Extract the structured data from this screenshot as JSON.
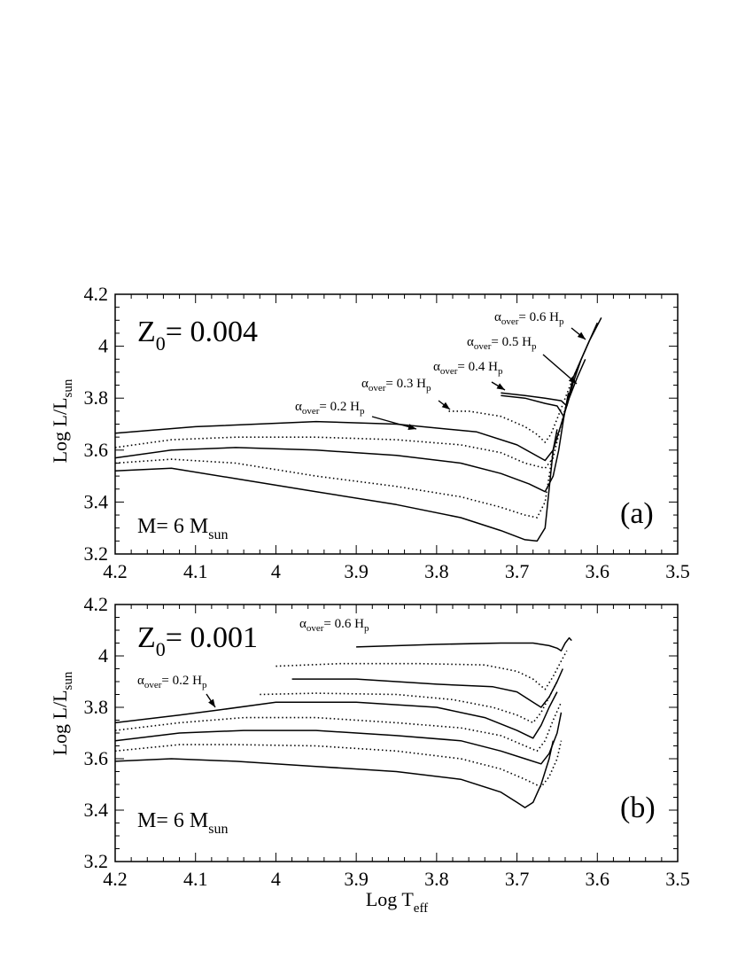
{
  "chart_data": [
    {
      "type": "line",
      "panel": "a",
      "panel_label": "(a)",
      "metallicity_label": "Z",
      "metallicity_sub": "0",
      "metallicity_value": "= 0.004",
      "mass_label": "M= 6 M",
      "mass_sub": "sun",
      "xlabel": "",
      "ylabel": "Log L/L",
      "ylabel_sub": "sun",
      "xlim": [
        4.2,
        3.5
      ],
      "ylim": [
        3.2,
        4.2
      ],
      "x_ticks": [
        "4.2",
        "4.1",
        "4",
        "3.9",
        "3.8",
        "3.7",
        "3.6",
        "3.5"
      ],
      "y_ticks": [
        "3.2",
        "3.4",
        "3.6",
        "3.8",
        "4"
      ],
      "y_ticks_extra": [
        "4.2"
      ],
      "annotations": [
        {
          "text": "α",
          "sub": "over",
          "rest": "= 0.2 H",
          "rest_sub": "p",
          "alpha": "0.2"
        },
        {
          "text": "α",
          "sub": "over",
          "rest": "= 0.3 H",
          "rest_sub": "p",
          "alpha": "0.3"
        },
        {
          "text": "α",
          "sub": "over",
          "rest": "= 0.4 H",
          "rest_sub": "p",
          "alpha": "0.4"
        },
        {
          "text": "α",
          "sub": "over",
          "rest": "= 0.5 H",
          "rest_sub": "p",
          "alpha": "0.5"
        },
        {
          "text": "α",
          "sub": "over",
          "rest": "= 0.6 H",
          "rest_sub": "p",
          "alpha": "0.6"
        }
      ],
      "series": [
        {
          "name": "alpha_over=0.2",
          "style": "solid",
          "x": [
            4.2,
            4.13,
            4.05,
            3.95,
            3.85,
            3.77,
            3.72,
            3.69,
            3.675,
            3.665,
            3.66,
            3.655,
            3.65
          ],
          "y": [
            3.52,
            3.53,
            3.49,
            3.44,
            3.39,
            3.34,
            3.29,
            3.255,
            3.25,
            3.3,
            3.45,
            3.6,
            3.68
          ]
        },
        {
          "name": "alpha_over=0.25",
          "style": "dotted",
          "x": [
            4.2,
            4.13,
            4.05,
            3.95,
            3.85,
            3.77,
            3.72,
            3.69,
            3.675,
            3.665,
            3.66,
            3.655,
            3.65
          ],
          "y": [
            3.55,
            3.565,
            3.55,
            3.5,
            3.46,
            3.42,
            3.38,
            3.35,
            3.34,
            3.4,
            3.5,
            3.6,
            3.67
          ]
        },
        {
          "name": "alpha_over=0.3",
          "style": "solid",
          "x": [
            4.2,
            4.13,
            4.05,
            3.95,
            3.85,
            3.77,
            3.72,
            3.685,
            3.665,
            3.655,
            3.648,
            3.642,
            3.636
          ],
          "y": [
            3.57,
            3.6,
            3.61,
            3.6,
            3.58,
            3.55,
            3.51,
            3.47,
            3.44,
            3.5,
            3.6,
            3.72,
            3.82
          ]
        },
        {
          "name": "alpha_over=0.35",
          "style": "dotted",
          "x": [
            4.2,
            4.13,
            4.05,
            3.95,
            3.85,
            3.77,
            3.72,
            3.69,
            3.665,
            3.655,
            3.648,
            3.64,
            3.63
          ],
          "y": [
            3.61,
            3.64,
            3.65,
            3.65,
            3.64,
            3.62,
            3.59,
            3.55,
            3.53,
            3.57,
            3.66,
            3.76,
            3.86
          ]
        },
        {
          "name": "alpha_over=0.4",
          "style": "solid",
          "x": [
            4.2,
            4.1,
            3.95,
            3.85,
            3.75,
            3.7,
            3.665,
            3.655,
            3.645,
            3.635,
            3.625,
            3.615
          ],
          "y": [
            3.665,
            3.69,
            3.71,
            3.7,
            3.67,
            3.62,
            3.56,
            3.6,
            3.7,
            3.8,
            3.88,
            3.95
          ]
        },
        {
          "name": "alpha_over=0.45",
          "style": "dotted",
          "x": [
            3.785,
            3.76,
            3.72,
            3.69,
            3.675,
            3.665,
            3.658,
            3.65,
            3.64,
            3.63,
            3.62
          ],
          "y": [
            3.75,
            3.75,
            3.73,
            3.69,
            3.66,
            3.63,
            3.66,
            3.72,
            3.8,
            3.88,
            3.95
          ]
        },
        {
          "name": "alpha_over=0.5",
          "style": "solid",
          "x": [
            3.72,
            3.69,
            3.665,
            3.65,
            3.642,
            3.636,
            3.63,
            3.62,
            3.61,
            3.6
          ],
          "y": [
            3.81,
            3.8,
            3.78,
            3.77,
            3.73,
            3.8,
            3.88,
            3.95,
            4.02,
            4.09
          ]
        },
        {
          "name": "alpha_over=0.6",
          "style": "solid",
          "x": [
            3.72,
            3.69,
            3.665,
            3.645,
            3.638,
            3.63,
            3.62,
            3.61,
            3.6,
            3.595
          ],
          "y": [
            3.82,
            3.81,
            3.8,
            3.79,
            3.77,
            3.86,
            3.95,
            4.02,
            4.08,
            4.11
          ]
        }
      ]
    },
    {
      "type": "line",
      "panel": "b",
      "panel_label": "(b)",
      "metallicity_label": "Z",
      "metallicity_sub": "0",
      "metallicity_value": "= 0.001",
      "mass_label": "M= 6 M",
      "mass_sub": "sun",
      "xlabel": "Log T",
      "xlabel_sub": "eff",
      "ylabel": "Log L/L",
      "ylabel_sub": "sun",
      "xlim": [
        4.2,
        3.5
      ],
      "ylim": [
        3.2,
        4.2
      ],
      "x_ticks": [
        "4.2",
        "4.1",
        "4",
        "3.9",
        "3.8",
        "3.7",
        "3.6",
        "3.5"
      ],
      "y_ticks": [
        "3.2",
        "3.4",
        "3.6",
        "3.8",
        "4"
      ],
      "y_ticks_extra": [
        "4.2"
      ],
      "annotations": [
        {
          "text": "α",
          "sub": "over",
          "rest": "= 0.6 H",
          "rest_sub": "p",
          "alpha": "0.6"
        },
        {
          "text": "α",
          "sub": "over",
          "rest": "= 0.2 H",
          "rest_sub": "p",
          "alpha": "0.2"
        }
      ],
      "series": [
        {
          "name": "alpha_over=0.2",
          "style": "solid",
          "x": [
            4.2,
            4.13,
            4.05,
            3.95,
            3.85,
            3.77,
            3.72,
            3.7,
            3.69,
            3.68,
            3.67,
            3.66,
            3.655
          ],
          "y": [
            3.59,
            3.6,
            3.59,
            3.57,
            3.55,
            3.52,
            3.47,
            3.43,
            3.41,
            3.43,
            3.5,
            3.6,
            3.67
          ]
        },
        {
          "name": "alpha_over=0.25",
          "style": "dotted",
          "x": [
            4.2,
            4.12,
            4.05,
            3.95,
            3.85,
            3.77,
            3.72,
            3.69,
            3.67,
            3.66,
            3.65,
            3.645
          ],
          "y": [
            3.63,
            3.655,
            3.655,
            3.65,
            3.63,
            3.6,
            3.56,
            3.52,
            3.49,
            3.53,
            3.6,
            3.67
          ]
        },
        {
          "name": "alpha_over=0.3",
          "style": "solid",
          "x": [
            4.2,
            4.12,
            4.04,
            3.95,
            3.85,
            3.77,
            3.72,
            3.69,
            3.67,
            3.66,
            3.65,
            3.645
          ],
          "y": [
            3.67,
            3.7,
            3.71,
            3.71,
            3.69,
            3.67,
            3.63,
            3.6,
            3.58,
            3.62,
            3.7,
            3.78
          ]
        },
        {
          "name": "alpha_over=0.35",
          "style": "dotted",
          "x": [
            4.2,
            4.12,
            4.04,
            3.95,
            3.85,
            3.77,
            3.72,
            3.69,
            3.675,
            3.665,
            3.655,
            3.645
          ],
          "y": [
            3.71,
            3.74,
            3.76,
            3.76,
            3.74,
            3.72,
            3.69,
            3.65,
            3.63,
            3.67,
            3.75,
            3.82
          ]
        },
        {
          "name": "alpha_over=0.4",
          "style": "solid",
          "x": [
            4.2,
            4.12,
            4.07,
            4.0,
            3.9,
            3.8,
            3.74,
            3.7,
            3.68,
            3.67,
            3.66,
            3.65
          ],
          "y": [
            3.74,
            3.77,
            3.79,
            3.82,
            3.82,
            3.8,
            3.76,
            3.71,
            3.68,
            3.73,
            3.8,
            3.86
          ]
        },
        {
          "name": "alpha_over=0.45",
          "style": "dotted",
          "x": [
            4.02,
            3.95,
            3.85,
            3.78,
            3.73,
            3.7,
            3.68,
            3.67,
            3.66,
            3.65
          ],
          "y": [
            3.85,
            3.855,
            3.85,
            3.83,
            3.8,
            3.77,
            3.74,
            3.78,
            3.84,
            3.9
          ]
        },
        {
          "name": "alpha_over=0.5",
          "style": "solid",
          "x": [
            3.98,
            3.9,
            3.8,
            3.73,
            3.7,
            3.68,
            3.67,
            3.66,
            3.65,
            3.643
          ],
          "y": [
            3.91,
            3.91,
            3.89,
            3.88,
            3.86,
            3.82,
            3.8,
            3.84,
            3.9,
            3.95
          ]
        },
        {
          "name": "alpha_over=0.55",
          "style": "dotted",
          "x": [
            4.0,
            3.92,
            3.82,
            3.74,
            3.7,
            3.68,
            3.665,
            3.655,
            3.645,
            3.638
          ],
          "y": [
            3.96,
            3.97,
            3.97,
            3.965,
            3.94,
            3.91,
            3.87,
            3.92,
            3.98,
            4.02
          ]
        },
        {
          "name": "alpha_over=0.6",
          "style": "solid",
          "x": [
            3.9,
            3.8,
            3.72,
            3.68,
            3.66,
            3.65,
            3.645,
            3.64,
            3.635,
            3.632
          ],
          "y": [
            4.035,
            4.045,
            4.05,
            4.05,
            4.04,
            4.03,
            4.02,
            4.05,
            4.07,
            4.06
          ]
        }
      ]
    }
  ]
}
